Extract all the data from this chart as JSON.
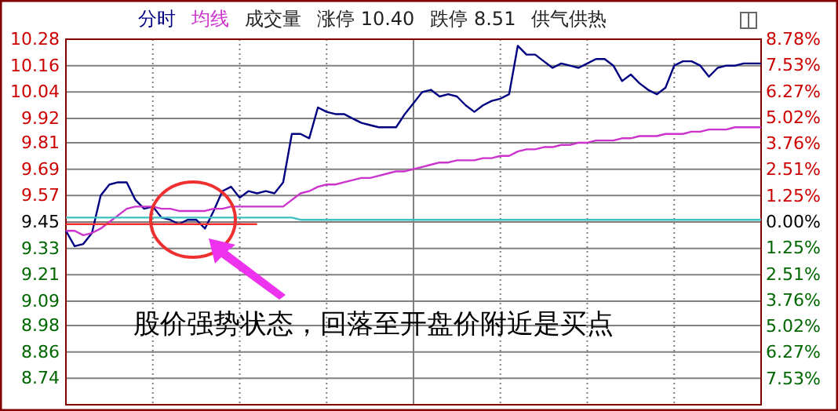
{
  "chart_data": {
    "type": "line",
    "categories": [
      null,
      null,
      null,
      null,
      null,
      null,
      null,
      null,
      null,
      null,
      null,
      null,
      null,
      null,
      null,
      null,
      null,
      null,
      null,
      null,
      null,
      null,
      null,
      null,
      null,
      null,
      null,
      null,
      null,
      null,
      null,
      null,
      null,
      null,
      null,
      null,
      null,
      null,
      null,
      null,
      null,
      null,
      null,
      null,
      null,
      null,
      null,
      null,
      null,
      null,
      null,
      null,
      null,
      null,
      null,
      null,
      null,
      null,
      null,
      null,
      null,
      null,
      null,
      null,
      null,
      null,
      null,
      null,
      null,
      null,
      null,
      null,
      null,
      null,
      null,
      null,
      null,
      null,
      null,
      null,
      null
    ],
    "series": [
      {
        "name": "分时",
        "color": "#000080",
        "values": [
          9.41,
          9.34,
          9.35,
          9.4,
          9.57,
          9.62,
          9.63,
          9.63,
          9.55,
          9.51,
          9.52,
          9.47,
          9.46,
          9.44,
          9.46,
          9.46,
          9.42,
          9.5,
          9.59,
          9.61,
          9.56,
          9.59,
          9.58,
          9.59,
          9.58,
          9.63,
          9.85,
          9.85,
          9.83,
          9.97,
          9.95,
          9.94,
          9.94,
          9.92,
          9.9,
          9.89,
          9.88,
          9.88,
          9.88,
          9.94,
          9.99,
          10.04,
          10.05,
          10.02,
          10.03,
          10.02,
          9.98,
          9.95,
          9.98,
          10.0,
          10.01,
          10.03,
          10.25,
          10.21,
          10.21,
          10.18,
          10.15,
          10.17,
          10.16,
          10.15,
          10.17,
          10.19,
          10.19,
          10.16,
          10.09,
          10.12,
          10.08,
          10.05,
          10.03,
          10.06,
          10.16,
          10.18,
          10.18,
          10.16,
          10.11,
          10.15,
          10.16,
          10.16,
          10.17,
          10.17,
          10.17
        ]
      },
      {
        "name": "均线",
        "color": "#cc33cc",
        "values": [
          9.41,
          9.41,
          9.39,
          9.4,
          9.42,
          9.45,
          9.48,
          9.51,
          9.52,
          9.52,
          9.52,
          9.51,
          9.51,
          9.5,
          9.5,
          9.5,
          9.5,
          9.51,
          9.51,
          9.52,
          9.52,
          9.52,
          9.52,
          9.52,
          9.52,
          9.52,
          9.55,
          9.58,
          9.59,
          9.61,
          9.62,
          9.62,
          9.63,
          9.64,
          9.65,
          9.65,
          9.66,
          9.67,
          9.68,
          9.68,
          9.69,
          9.7,
          9.71,
          9.72,
          9.72,
          9.73,
          9.73,
          9.73,
          9.74,
          9.74,
          9.75,
          9.75,
          9.77,
          9.78,
          9.78,
          9.79,
          9.79,
          9.8,
          9.8,
          9.81,
          9.81,
          9.82,
          9.82,
          9.82,
          9.83,
          9.83,
          9.84,
          9.84,
          9.84,
          9.85,
          9.85,
          9.85,
          9.86,
          9.86,
          9.87,
          9.87,
          9.87,
          9.88,
          9.88,
          9.88,
          9.88
        ]
      },
      {
        "color": "#40c0c0",
        "values": [
          9.47,
          9.47,
          9.47,
          9.47,
          9.47,
          9.47,
          9.47,
          9.47,
          9.47,
          9.47,
          9.47,
          9.47,
          9.47,
          9.47,
          9.47,
          9.47,
          9.47,
          9.47,
          9.47,
          9.47,
          9.47,
          9.47,
          9.47,
          9.47,
          9.47,
          9.47,
          9.47,
          9.46,
          9.46,
          9.46,
          9.46,
          9.46,
          9.46,
          9.46,
          9.46,
          9.46,
          9.46,
          9.46,
          9.46,
          9.46,
          9.46,
          9.46,
          9.46,
          9.46,
          9.46,
          9.46,
          9.46,
          9.46,
          9.46,
          9.46,
          9.46,
          9.46,
          9.46,
          9.46,
          9.46,
          9.46,
          9.46,
          9.46,
          9.46,
          9.46,
          9.46,
          9.46,
          9.46,
          9.46,
          9.46,
          9.46,
          9.46,
          9.46,
          9.46,
          9.46,
          9.46,
          9.46,
          9.46,
          9.46,
          9.46,
          9.46,
          9.46,
          9.46,
          9.46,
          9.46,
          9.46
        ]
      },
      {
        "color": "#ee3030",
        "values": [
          9.44,
          9.44,
          9.44,
          9.44,
          9.44,
          9.44,
          9.44,
          9.44,
          9.44,
          9.44,
          9.44,
          9.44,
          9.44,
          9.44,
          9.44,
          9.44,
          9.44,
          9.44,
          9.44,
          9.44,
          9.44,
          9.44,
          9.44,
          null,
          null,
          null,
          null,
          null,
          null,
          null,
          null,
          null,
          null,
          null,
          null,
          null,
          null,
          null,
          null,
          null,
          null,
          null,
          null,
          null,
          null,
          null,
          null,
          null,
          null,
          null,
          null,
          null,
          null,
          null,
          null,
          null,
          null,
          null,
          null,
          null,
          null,
          null,
          null,
          null,
          null,
          null,
          null,
          null,
          null,
          null,
          null,
          null,
          null,
          null,
          null,
          null,
          null,
          null,
          null,
          null,
          null
        ]
      }
    ],
    "ylim": [
      8.62,
      10.28
    ],
    "yticks": [
      10.28,
      10.16,
      10.04,
      9.92,
      9.81,
      9.69,
      9.57,
      9.45,
      9.33,
      9.21,
      9.09,
      8.98,
      8.86,
      8.74
    ],
    "y2lim": [
      -8.78,
      8.78
    ],
    "y2ticks": [
      {
        "value": 8.78,
        "label": "8.78%"
      },
      {
        "value": 7.53,
        "label": "7.53%"
      },
      {
        "value": 6.27,
        "label": "6.27%"
      },
      {
        "value": 5.02,
        "label": "5.02%"
      },
      {
        "value": 3.76,
        "label": "3.76%"
      },
      {
        "value": 2.51,
        "label": "2.51%"
      },
      {
        "value": 1.25,
        "label": "1.25%"
      },
      {
        "value": 0,
        "label": "0.00%"
      },
      {
        "value": -1.25,
        "label": "1.25%"
      },
      {
        "value": -2.51,
        "label": "2.51%"
      },
      {
        "value": -3.76,
        "label": "3.76%"
      },
      {
        "value": -5.02,
        "label": "5.02%"
      },
      {
        "value": -6.27,
        "label": "6.27%"
      },
      {
        "value": -7.53,
        "label": "7.53%"
      }
    ],
    "grid": true,
    "annotations": [
      "成交量",
      "涨停 10.40",
      "跌停 8.51",
      "供气供热",
      "股价强势状态，回落至开盘价附近是买点"
    ]
  }
}
